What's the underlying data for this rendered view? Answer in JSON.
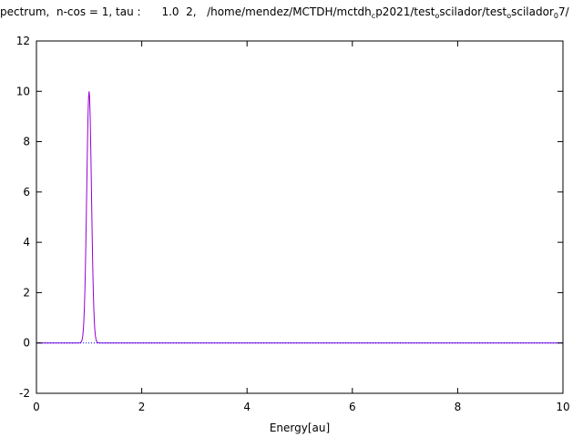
{
  "title": {
    "prefix": "pectrum,  n-cos = 1, tau :      1.0  2,   /home/mendez/MCTDH/mctdh",
    "sub1": "c",
    "part2": "p2021/test",
    "sub2": "o",
    "part3": "scilador/test",
    "sub3": "o",
    "part4": "scilador",
    "sub4": "0",
    "part5": "7/"
  },
  "chart_data": {
    "type": "line",
    "xlabel": "Energy[au]",
    "ylabel": "",
    "xlim": [
      0,
      10
    ],
    "ylim": [
      -2,
      12
    ],
    "xticks": [
      "0",
      "2",
      "4",
      "6",
      "8",
      "10"
    ],
    "yticks": [
      "-2",
      "0",
      "2",
      "4",
      "6",
      "8",
      "10",
      "12"
    ],
    "grid": false,
    "series": [
      {
        "color": "#9400d3",
        "style": "solid",
        "peak_center": 1.0,
        "peak_height": 10.0,
        "peak_sigma": 0.045,
        "x": [
          0,
          0.8,
          0.85,
          0.88,
          0.9,
          0.92,
          0.94,
          0.96,
          0.98,
          1.0,
          1.02,
          1.04,
          1.06,
          1.08,
          1.1,
          1.12,
          1.15,
          1.2,
          10
        ],
        "y": [
          0,
          0,
          0.01,
          0.09,
          0.26,
          0.64,
          1.31,
          2.52,
          4.0,
          10.0,
          4.0,
          2.52,
          1.31,
          0.64,
          0.26,
          0.09,
          0.01,
          0,
          0
        ]
      },
      {
        "color": "#0000ff",
        "style": "dotted",
        "x": [
          0,
          10
        ],
        "y": [
          0,
          0
        ]
      }
    ]
  }
}
